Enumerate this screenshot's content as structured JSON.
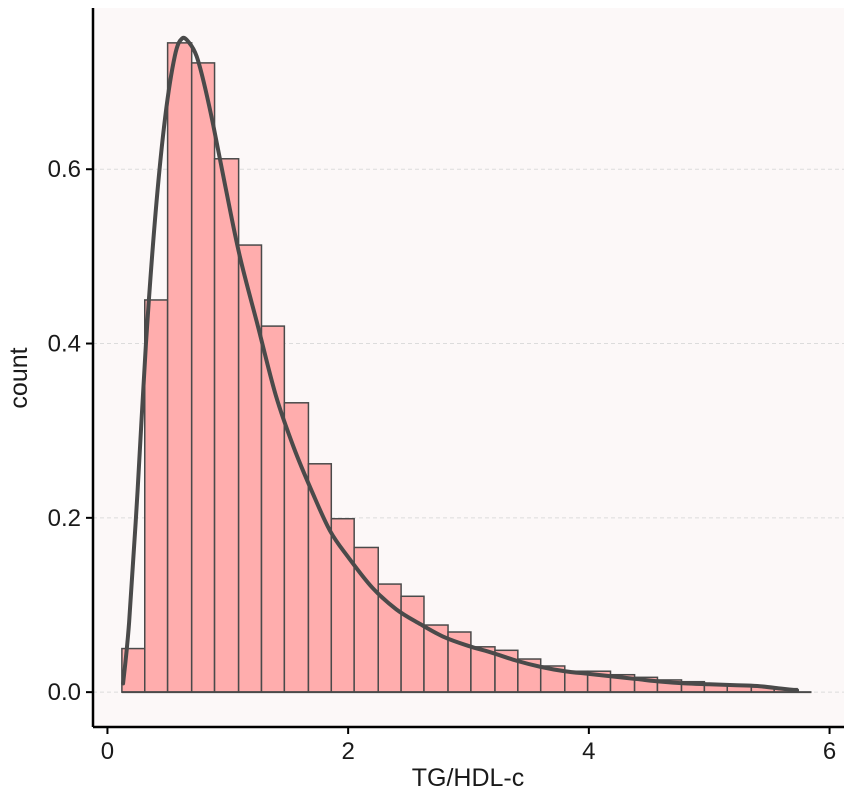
{
  "chart_data": {
    "type": "bar",
    "subtype": "histogram-with-density",
    "xlabel": "TG/HDL-c",
    "ylabel": "count",
    "xlim": [
      -0.12,
      6.12
    ],
    "ylim": [
      -0.04,
      0.785
    ],
    "xticks": [
      0,
      2,
      4,
      6
    ],
    "yticks": [
      0.0,
      0.2,
      0.4,
      0.6
    ],
    "ytick_labels": [
      "0.0",
      "0.2",
      "0.4",
      "0.6"
    ],
    "grid": "horizontal-dashed",
    "bin_width": 0.193,
    "bins": [
      {
        "x0": 0.12,
        "x1": 0.31,
        "value": 0.05
      },
      {
        "x0": 0.31,
        "x1": 0.5,
        "value": 0.45
      },
      {
        "x0": 0.5,
        "x1": 0.7,
        "value": 0.745
      },
      {
        "x0": 0.7,
        "x1": 0.89,
        "value": 0.722
      },
      {
        "x0": 0.89,
        "x1": 1.09,
        "value": 0.612
      },
      {
        "x0": 1.09,
        "x1": 1.28,
        "value": 0.513
      },
      {
        "x0": 1.28,
        "x1": 1.47,
        "value": 0.42
      },
      {
        "x0": 1.47,
        "x1": 1.67,
        "value": 0.332
      },
      {
        "x0": 1.67,
        "x1": 1.86,
        "value": 0.262
      },
      {
        "x0": 1.86,
        "x1": 2.05,
        "value": 0.199
      },
      {
        "x0": 2.05,
        "x1": 2.25,
        "value": 0.166
      },
      {
        "x0": 2.25,
        "x1": 2.44,
        "value": 0.124
      },
      {
        "x0": 2.44,
        "x1": 2.63,
        "value": 0.11
      },
      {
        "x0": 2.63,
        "x1": 2.83,
        "value": 0.077
      },
      {
        "x0": 2.83,
        "x1": 3.02,
        "value": 0.069
      },
      {
        "x0": 3.02,
        "x1": 3.22,
        "value": 0.052
      },
      {
        "x0": 3.22,
        "x1": 3.41,
        "value": 0.048
      },
      {
        "x0": 3.41,
        "x1": 3.6,
        "value": 0.038
      },
      {
        "x0": 3.6,
        "x1": 3.8,
        "value": 0.03
      },
      {
        "x0": 3.8,
        "x1": 3.99,
        "value": 0.024
      },
      {
        "x0": 3.99,
        "x1": 4.18,
        "value": 0.024
      },
      {
        "x0": 4.18,
        "x1": 4.38,
        "value": 0.02
      },
      {
        "x0": 4.38,
        "x1": 4.57,
        "value": 0.017
      },
      {
        "x0": 4.57,
        "x1": 4.77,
        "value": 0.014
      },
      {
        "x0": 4.77,
        "x1": 4.96,
        "value": 0.012
      },
      {
        "x0": 4.96,
        "x1": 5.15,
        "value": 0.009
      },
      {
        "x0": 5.15,
        "x1": 5.35,
        "value": 0.008
      },
      {
        "x0": 5.35,
        "x1": 5.54,
        "value": 0.006
      },
      {
        "x0": 5.54,
        "x1": 5.73,
        "value": 0.004
      }
    ],
    "density_curve": {
      "x": [
        0.13,
        0.18,
        0.25,
        0.32,
        0.4,
        0.48,
        0.56,
        0.62,
        0.68,
        0.74,
        0.8,
        0.88,
        0.98,
        1.1,
        1.25,
        1.4,
        1.55,
        1.7,
        1.85,
        2.0,
        2.2,
        2.4,
        2.6,
        2.8,
        3.0,
        3.2,
        3.4,
        3.6,
        3.8,
        4.0,
        4.2,
        4.4,
        4.6,
        4.8,
        5.0,
        5.2,
        5.4,
        5.6,
        5.73
      ],
      "y": [
        0.01,
        0.08,
        0.23,
        0.4,
        0.55,
        0.66,
        0.73,
        0.75,
        0.745,
        0.73,
        0.7,
        0.65,
        0.58,
        0.5,
        0.42,
        0.34,
        0.28,
        0.23,
        0.185,
        0.155,
        0.12,
        0.095,
        0.078,
        0.063,
        0.053,
        0.045,
        0.036,
        0.029,
        0.024,
        0.021,
        0.018,
        0.015,
        0.012,
        0.01,
        0.009,
        0.008,
        0.007,
        0.004,
        0.002
      ]
    },
    "baseline_span": [
      0.12,
      5.85
    ],
    "colors": {
      "panel_background": "#fcf8f8",
      "bar_fill": "#ffadad",
      "bar_stroke": "#4a4a4a",
      "density_line": "#4a4a4a",
      "grid": "#dcdcdc",
      "axis": "#000000"
    }
  }
}
